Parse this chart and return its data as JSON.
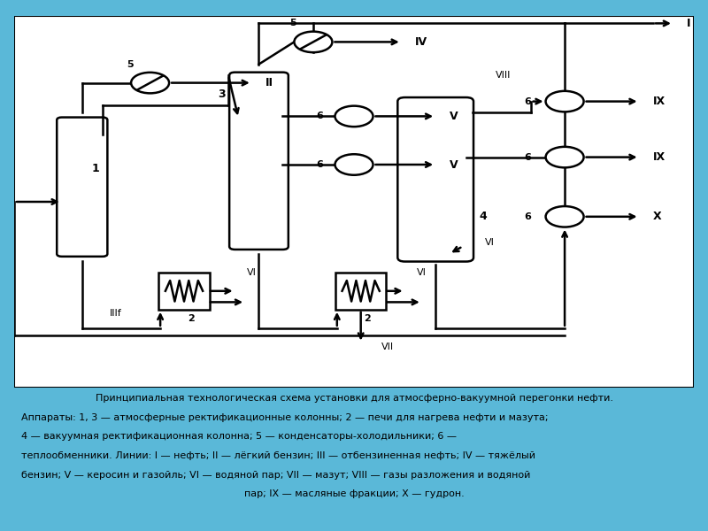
{
  "bg_color": "#5ab8d8",
  "diagram_bg": "#ffffff",
  "lc": "#000000",
  "caption_lines": [
    "Принципиальная технологическая схема установки для атмосферно-вакуумной перегонки нефти.",
    "Аппараты: 1, 3 — атмосферные ректификационные колонны; 2 — печи для нагрева нефти и мазута;",
    "4 — вакуумная ректификационная колонна; 5 — конденсаторы-холодильники; 6 —",
    "теплообменники. Линии: I — нефть; II — лёгкий бензин; III — отбензиненная нефть; IV — тяжёлый",
    "бензин; V — керосин и газойль; VI — водяной пар; VII — мазут; VIII — газы разложения и водяной",
    "пар; IX — масляные фракции; X — гудрон."
  ],
  "lw": 1.8
}
